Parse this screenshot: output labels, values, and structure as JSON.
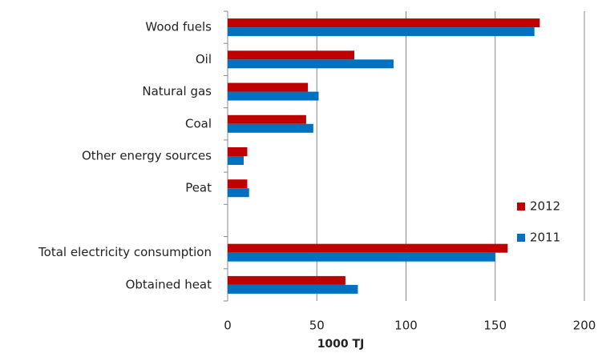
{
  "chart_data": {
    "type": "hbar",
    "xlabel": "1000 TJ",
    "categories": [
      "Wood fuels",
      "Oil",
      "Natural gas",
      "Coal",
      "Other energy sources",
      "Peat",
      null,
      "Total electricity consumption",
      "Obtained heat"
    ],
    "series": [
      {
        "name": "2012",
        "color": "#c00000",
        "values": [
          175,
          71,
          45,
          44,
          11,
          11,
          null,
          157,
          66
        ]
      },
      {
        "name": "2011",
        "color": "#0070c0",
        "values": [
          172,
          93,
          51,
          48,
          9,
          12,
          null,
          150,
          73
        ]
      }
    ],
    "xlim": [
      0,
      200
    ],
    "xticks": [
      0,
      50,
      100,
      150,
      200
    ],
    "grid": true
  }
}
